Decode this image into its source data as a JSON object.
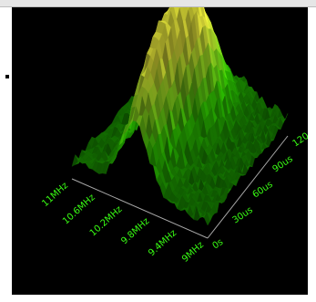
{
  "colors": {
    "panel_background": "#000000",
    "tick_label": "#39ff14",
    "surface_low": "#0a5a00",
    "surface_mid": "#2ecc00",
    "surface_high": "#ffff40",
    "axis": "#a8a8a8"
  },
  "chart_data": {
    "type": "surface3d",
    "title": "",
    "frequency_axis": {
      "label": "",
      "ticks": [
        "11MHz",
        "10.6MHz",
        "10.2MHz",
        "9.8MHz",
        "9.4MHz",
        "9MHz"
      ],
      "range": [
        9.0,
        11.0
      ],
      "unit": "MHz"
    },
    "time_axis": {
      "label": "",
      "ticks": [
        "0s",
        "30us",
        "60us",
        "90us",
        "120"
      ],
      "range": [
        0,
        120
      ],
      "unit": "us"
    },
    "amplitude": {
      "range": [
        0,
        1
      ],
      "peaks": [
        {
          "frequency_mhz": 9.95,
          "time_us": 70,
          "relative_amplitude": 1.0
        },
        {
          "frequency_mhz": 10.15,
          "time_us": 40,
          "relative_amplitude": 0.85
        },
        {
          "frequency_mhz": 10.05,
          "time_us": 10,
          "relative_amplitude": 0.55
        }
      ],
      "background_level": 0.12
    },
    "colormap": "green-to-yellow",
    "grid": false
  }
}
